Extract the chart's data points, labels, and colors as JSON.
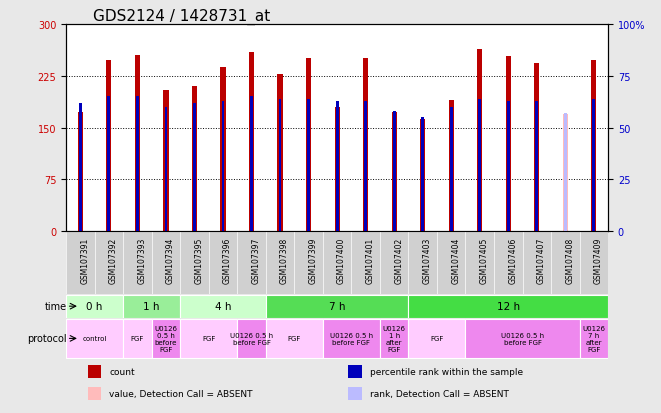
{
  "title": "GDS2124 / 1428731_at",
  "samples": [
    "GSM107391",
    "GSM107392",
    "GSM107393",
    "GSM107394",
    "GSM107395",
    "GSM107396",
    "GSM107397",
    "GSM107398",
    "GSM107399",
    "GSM107400",
    "GSM107401",
    "GSM107402",
    "GSM107403",
    "GSM107404",
    "GSM107405",
    "GSM107406",
    "GSM107407",
    "GSM107408",
    "GSM107409"
  ],
  "count_values": [
    172,
    248,
    255,
    205,
    210,
    238,
    260,
    228,
    250,
    180,
    250,
    173,
    162,
    190,
    263,
    253,
    243,
    0,
    248
  ],
  "rank_values": [
    62,
    65,
    65,
    60,
    62,
    63,
    65,
    64,
    64,
    63,
    63,
    58,
    55,
    60,
    64,
    63,
    63,
    0,
    64
  ],
  "absent_count": [
    null,
    null,
    null,
    null,
    null,
    null,
    null,
    null,
    null,
    null,
    null,
    null,
    null,
    null,
    null,
    null,
    null,
    170,
    null
  ],
  "absent_rank": [
    null,
    null,
    null,
    null,
    null,
    null,
    null,
    null,
    null,
    null,
    null,
    null,
    null,
    null,
    null,
    null,
    null,
    57,
    null
  ],
  "ylim_left": [
    0,
    300
  ],
  "ylim_right": [
    0,
    100
  ],
  "yticks_left": [
    0,
    75,
    150,
    225,
    300
  ],
  "yticks_right": [
    0,
    25,
    50,
    75,
    100
  ],
  "grid_values": [
    75,
    150,
    225
  ],
  "bar_color": "#bb0000",
  "rank_color": "#0000bb",
  "absent_bar_color": "#ffbbbb",
  "absent_rank_color": "#bbbbff",
  "bar_width": 0.18,
  "rank_bar_height": 8,
  "time_groups": [
    {
      "label": "0 h",
      "start": 0,
      "end": 2,
      "color": "#ccffcc"
    },
    {
      "label": "1 h",
      "start": 2,
      "end": 4,
      "color": "#99ee99"
    },
    {
      "label": "4 h",
      "start": 4,
      "end": 7,
      "color": "#ccffcc"
    },
    {
      "label": "7 h",
      "start": 7,
      "end": 12,
      "color": "#55dd55"
    },
    {
      "label": "12 h",
      "start": 12,
      "end": 19,
      "color": "#44dd44"
    }
  ],
  "protocol_groups": [
    {
      "label": "control",
      "start": 0,
      "end": 2,
      "color": "#ffccff"
    },
    {
      "label": "FGF",
      "start": 2,
      "end": 3,
      "color": "#ffccff"
    },
    {
      "label": "U0126\n0.5 h\nbefore\nFGF",
      "start": 3,
      "end": 4,
      "color": "#ee88ee"
    },
    {
      "label": "FGF",
      "start": 4,
      "end": 6,
      "color": "#ffccff"
    },
    {
      "label": "U0126 0.5 h\nbefore FGF",
      "start": 6,
      "end": 7,
      "color": "#ee88ee"
    },
    {
      "label": "FGF",
      "start": 7,
      "end": 9,
      "color": "#ffccff"
    },
    {
      "label": "U0126 0.5 h\nbefore FGF",
      "start": 9,
      "end": 11,
      "color": "#ee88ee"
    },
    {
      "label": "U0126\n1 h\nafter\nFGF",
      "start": 11,
      "end": 12,
      "color": "#ee88ee"
    },
    {
      "label": "FGF",
      "start": 12,
      "end": 14,
      "color": "#ffccff"
    },
    {
      "label": "U0126 0.5 h\nbefore FGF",
      "start": 14,
      "end": 18,
      "color": "#ee88ee"
    },
    {
      "label": "U0126\n7 h\nafter\nFGF",
      "start": 18,
      "end": 19,
      "color": "#ee88ee"
    }
  ],
  "legend_items": [
    {
      "label": "count",
      "color": "#bb0000"
    },
    {
      "label": "percentile rank within the sample",
      "color": "#0000bb"
    },
    {
      "label": "value, Detection Call = ABSENT",
      "color": "#ffbbbb"
    },
    {
      "label": "rank, Detection Call = ABSENT",
      "color": "#bbbbff"
    }
  ],
  "bg_color": "#e8e8e8",
  "plot_bg": "#ffffff",
  "title_fontsize": 11,
  "tick_fontsize": 7,
  "label_fontsize": 7.5,
  "xlabel_area_color": "#d0d0d0"
}
